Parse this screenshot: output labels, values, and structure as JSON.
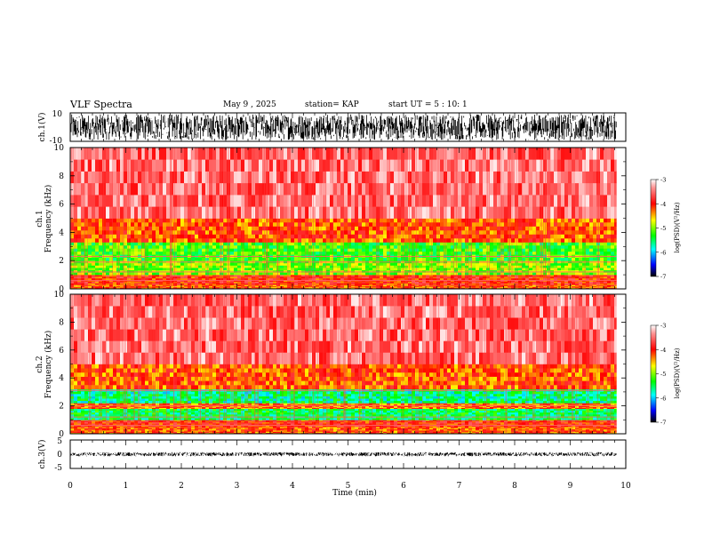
{
  "header": {
    "title": "VLF Spectra",
    "date": "May 9 , 2025",
    "station": "station= KAP",
    "start": "start UT =  5 : 10: 1"
  },
  "chart_data": [
    {
      "type": "line",
      "name": "ch1-waveform",
      "ylabel": "ch.1(V)",
      "ylim": [
        -10,
        10
      ],
      "y_ticks": [
        "10",
        "-10"
      ],
      "xlim": [
        0,
        10
      ],
      "trace_extent_x": [
        0,
        9.83
      ],
      "approx_amplitude_range": [
        -9,
        9
      ]
    },
    {
      "type": "heatmap",
      "name": "ch1-spectrogram",
      "ylabel": "ch.1\nFrequency (kHz)",
      "ylim": [
        0,
        10
      ],
      "y_ticks": [
        "0",
        "2",
        "4",
        "6",
        "8",
        "10"
      ],
      "xlim": [
        0,
        10
      ],
      "data_extent_x": [
        0,
        9.83
      ],
      "psd_bands": [
        {
          "f": [
            0,
            0.3
          ],
          "log_psd": -4.2
        },
        {
          "f": [
            0.3,
            1.0
          ],
          "log_psd": -4.0
        },
        {
          "f": [
            1.0,
            2.0
          ],
          "log_psd": -5.0
        },
        {
          "f": [
            2.0,
            3.3
          ],
          "log_psd": -5.2
        },
        {
          "f": [
            3.3,
            5.0
          ],
          "log_psd": -4.2
        },
        {
          "f": [
            5.0,
            10.0
          ],
          "log_psd": -3.5
        }
      ],
      "line_features_khz": [
        0.6,
        1.2,
        1.9,
        2.3
      ]
    },
    {
      "type": "heatmap",
      "name": "ch2-spectrogram",
      "ylabel": "ch.2\nFrequency (kHz)",
      "ylim": [
        0,
        10
      ],
      "y_ticks": [
        "0",
        "2",
        "4",
        "6",
        "8",
        "10"
      ],
      "xlim": [
        0,
        10
      ],
      "data_extent_x": [
        0,
        9.83
      ],
      "psd_bands": [
        {
          "f": [
            0,
            0.5
          ],
          "log_psd": -4.2
        },
        {
          "f": [
            0.5,
            1.0
          ],
          "log_psd": -4.0
        },
        {
          "f": [
            1.0,
            1.8
          ],
          "log_psd": -5.5
        },
        {
          "f": [
            1.8,
            2.2
          ],
          "log_psd": -4.3
        },
        {
          "f": [
            2.2,
            3.2
          ],
          "log_psd": -5.6
        },
        {
          "f": [
            3.2,
            5.0
          ],
          "log_psd": -4.2
        },
        {
          "f": [
            5.0,
            10.0
          ],
          "log_psd": -3.5
        }
      ],
      "line_features_khz": [
        0.6,
        1.2,
        2.0,
        3.1
      ]
    },
    {
      "type": "line",
      "name": "ch3-waveform",
      "ylabel": "ch.3(V)",
      "ylim": [
        -5,
        5
      ],
      "y_ticks": [
        "5",
        "0",
        "-5"
      ],
      "xlim": [
        0,
        10
      ],
      "trace_extent_x": [
        0,
        9.83
      ],
      "approx_amplitude_range": [
        -0.7,
        0.7
      ]
    }
  ],
  "x_axis": {
    "label": "Time (min)",
    "ticks": [
      "0",
      "1",
      "2",
      "3",
      "4",
      "5",
      "6",
      "7",
      "8",
      "9",
      "10"
    ]
  },
  "colorbar": {
    "label": "log(PSD)(V²/Hz)",
    "range": [
      -7,
      -3
    ],
    "ticks": [
      "-3",
      "-4",
      "-5",
      "-6",
      "-7"
    ],
    "stops": [
      "#ffffff",
      "#ff0000",
      "#ffff00",
      "#00ff00",
      "#00ffff",
      "#0000ff",
      "#000000"
    ]
  }
}
